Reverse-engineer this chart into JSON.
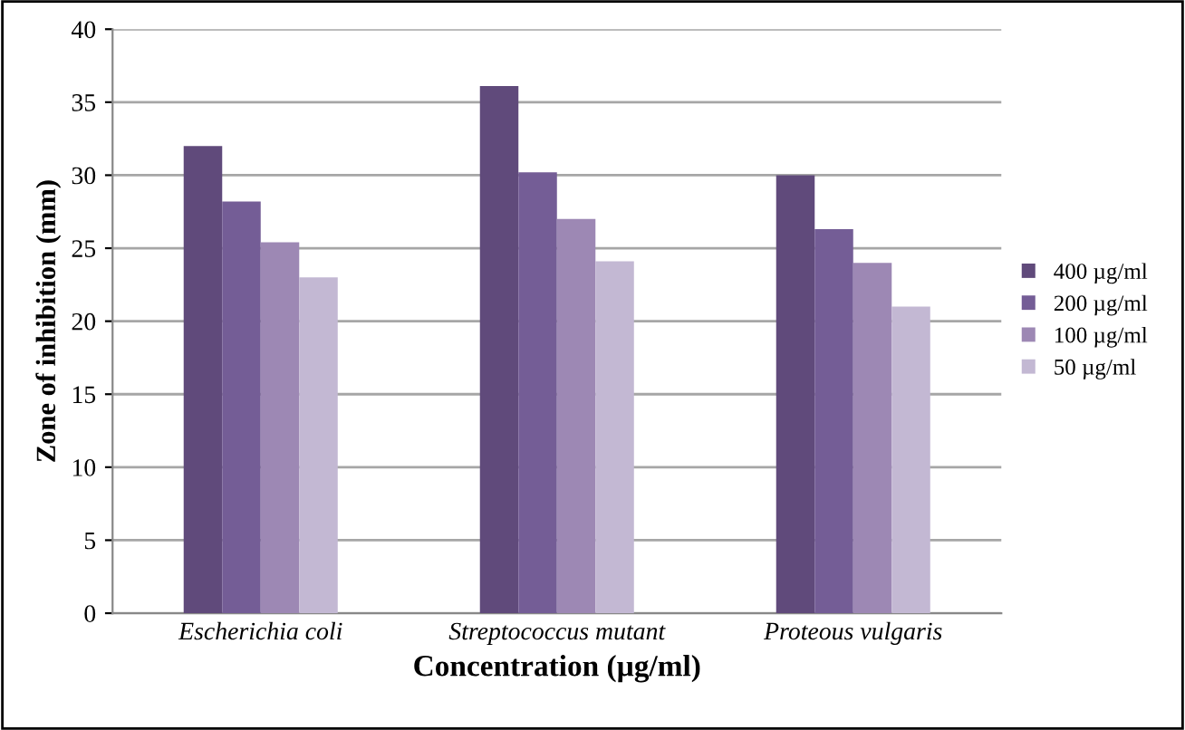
{
  "chart_data": {
    "type": "bar",
    "categories": [
      "Escherichia coli",
      "Streptococcus mutant",
      "Proteous vulgaris"
    ],
    "xlabel": "Concentration (µg/ml)",
    "ylabel": "Zone of inhibition (mm)",
    "ylim": [
      0,
      40
    ],
    "yticks": [
      0,
      5,
      10,
      15,
      20,
      25,
      30,
      35,
      40
    ],
    "grid": "y",
    "legend": "right",
    "series": [
      {
        "name": "400 µg/ml",
        "color": "#604a7b",
        "values": [
          32,
          36.1,
          30
        ]
      },
      {
        "name": "200 µg/ml",
        "color": "#745d96",
        "values": [
          28.2,
          30.2,
          26.3
        ]
      },
      {
        "name": "100 µg/ml",
        "color": "#9d88b4",
        "values": [
          25.4,
          27,
          24
        ]
      },
      {
        "name": "50 µg/ml",
        "color": "#c3b8d3",
        "values": [
          23,
          24.1,
          21
        ]
      }
    ]
  }
}
